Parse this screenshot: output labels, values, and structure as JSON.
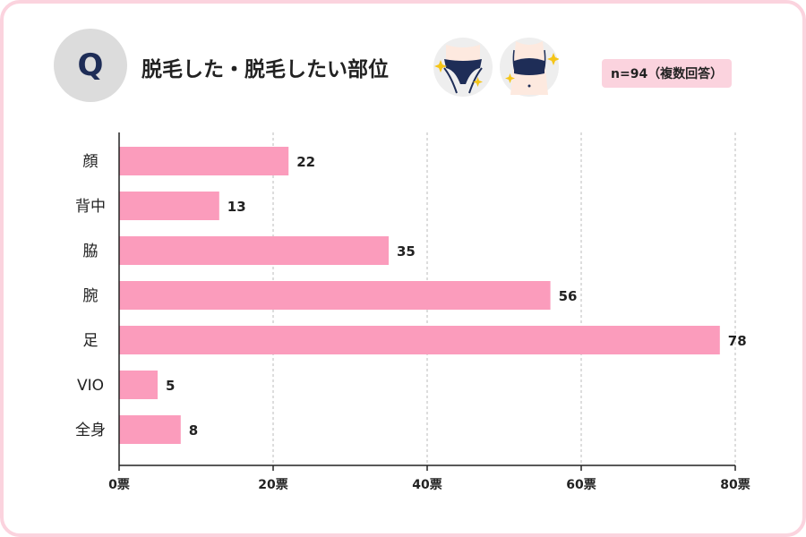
{
  "header": {
    "badge": "Q",
    "title": "脱毛した・脱毛したい部位",
    "sample_note": "n=94（複数回答）"
  },
  "colors": {
    "bar": "#fb9cbc",
    "frame": "#fbd3de",
    "badge_bg": "#dcdcdc",
    "badge_text": "#1e2d57",
    "grid": "#bbbbbb"
  },
  "chart_data": {
    "type": "bar",
    "orientation": "horizontal",
    "categories": [
      "顔",
      "背中",
      "脇",
      "腕",
      "足",
      "VIO",
      "全身"
    ],
    "values": [
      22,
      13,
      35,
      56,
      78,
      5,
      8
    ],
    "xlim": [
      0,
      80
    ],
    "xticks": [
      0,
      20,
      40,
      60,
      80
    ],
    "xtick_labels": [
      "0票",
      "20票",
      "40票",
      "60票",
      "80票"
    ],
    "grid": true,
    "data_labels": true
  }
}
